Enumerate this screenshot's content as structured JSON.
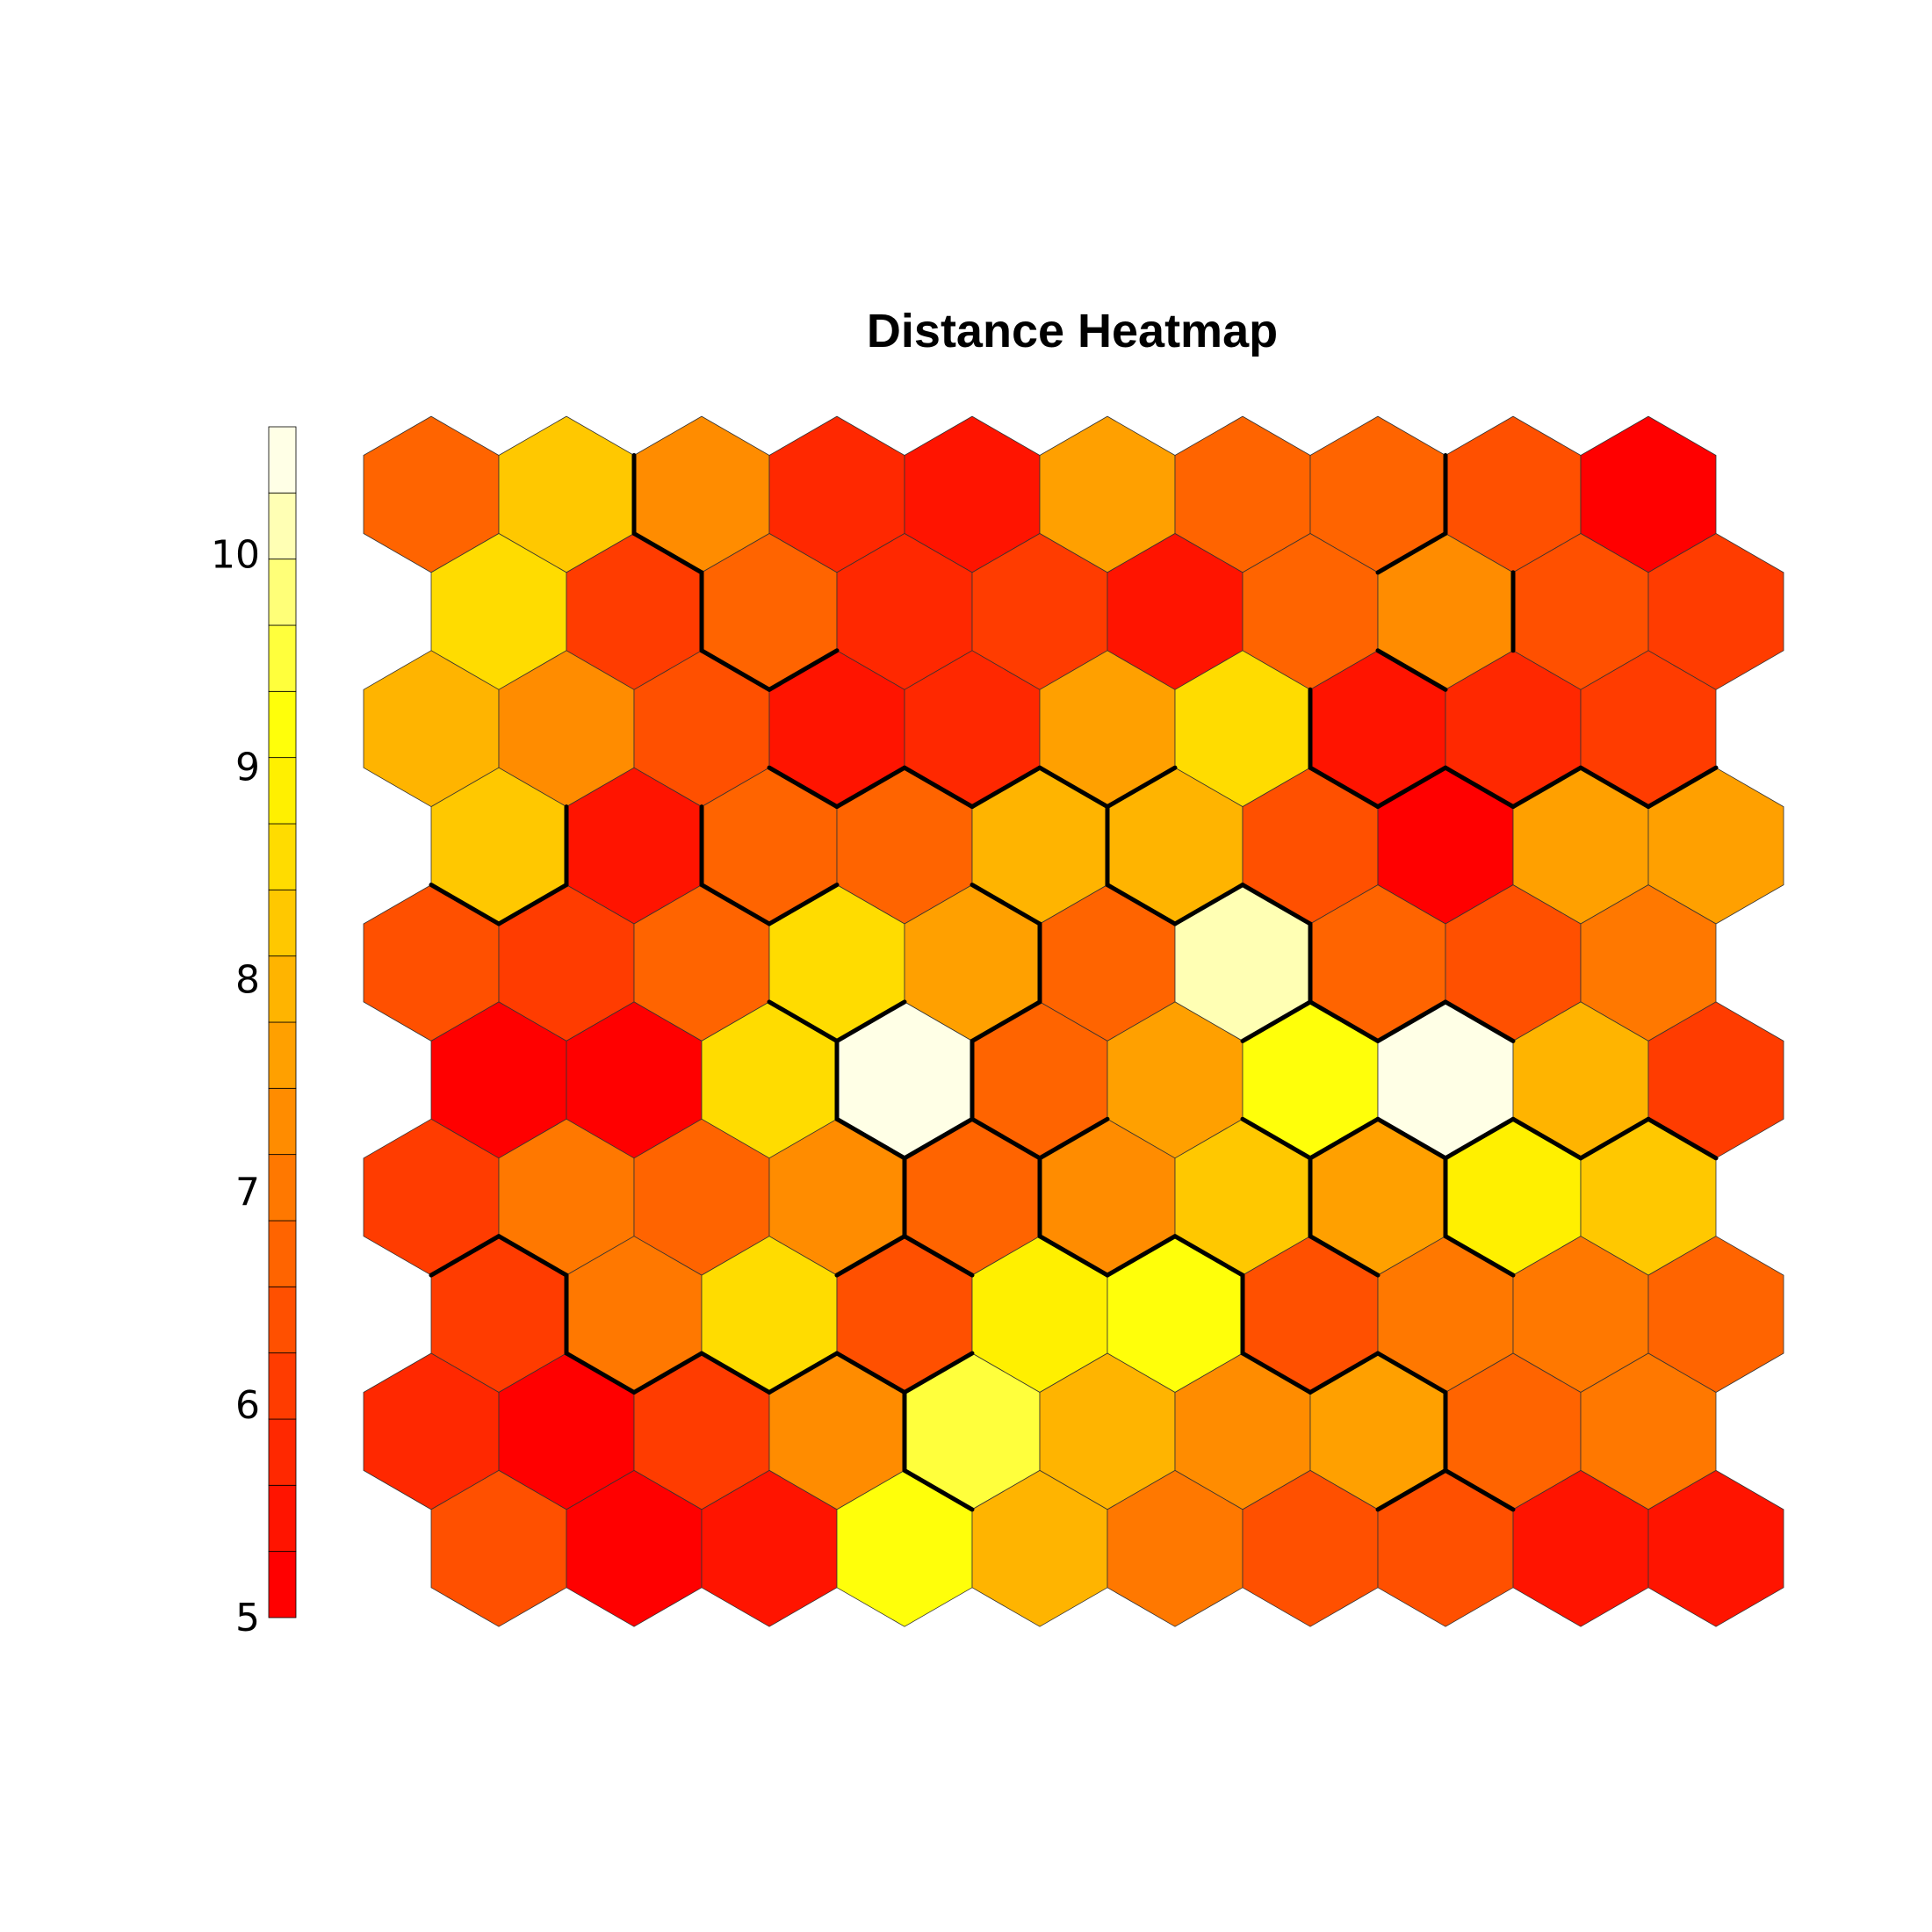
{
  "chart_data": {
    "type": "heatmap",
    "subtype": "hexagonal-som-distance",
    "title": "Distance Heatmap",
    "colorbar": {
      "range": [
        5,
        10.6
      ],
      "ticks": [
        5,
        6,
        7,
        8,
        9,
        10
      ],
      "tick_labels": [
        "5",
        "6",
        "7",
        "8",
        "9",
        "10"
      ],
      "colors": [
        "#FF0000",
        "#FF1400",
        "#FF2800",
        "#FF3C00",
        "#FF5000",
        "#FF6400",
        "#FF7800",
        "#FF8C00",
        "#FFA000",
        "#FFB400",
        "#FFC800",
        "#FFDC00",
        "#FFF000",
        "#FFFF0A",
        "#FFFF3C",
        "#FFFF78",
        "#FFFFB4",
        "#FFFFE6"
      ]
    },
    "grid": {
      "columns": 10,
      "rows": 10,
      "layout": "hexagonal",
      "odd_rows_shifted": "right"
    },
    "rows_top_to_bottom": [
      [
        6.6,
        8.4,
        7.2,
        5.8,
        5.5,
        7.5,
        6.6,
        6.8,
        6.5,
        5.2
      ],
      [
        8.6,
        6.2,
        6.6,
        5.8,
        6.0,
        5.6,
        6.7,
        7.4,
        6.3,
        6.0
      ],
      [
        7.9,
        7.3,
        6.4,
        5.6,
        5.9,
        7.6,
        8.6,
        5.6,
        5.8,
        6.0
      ],
      [
        8.2,
        5.6,
        6.6,
        6.8,
        7.8,
        7.8,
        6.4,
        5.0,
        7.6,
        7.6
      ],
      [
        6.4,
        6.1,
        6.6,
        8.6,
        7.5,
        6.6,
        10.2,
        6.8,
        6.5,
        7.0
      ],
      [
        5.3,
        5.2,
        8.5,
        10.5,
        6.7,
        7.6,
        9.2,
        10.5,
        7.8,
        6.1
      ],
      [
        6.2,
        6.9,
        6.8,
        7.4,
        6.8,
        7.3,
        8.2,
        7.7,
        9.0,
        8.2
      ],
      [
        6.2,
        7.1,
        8.5,
        6.4,
        8.8,
        9.1,
        6.5,
        7.0,
        6.9,
        6.7
      ],
      [
        5.7,
        5.1,
        6.2,
        7.4,
        9.6,
        8.0,
        7.2,
        7.6,
        6.6,
        7.0
      ],
      [
        6.3,
        5.0,
        5.6,
        9.2,
        8.1,
        7.1,
        6.4,
        6.4,
        5.6,
        5.5
      ]
    ],
    "cluster_boundaries": "thick black edges separating clusters"
  }
}
